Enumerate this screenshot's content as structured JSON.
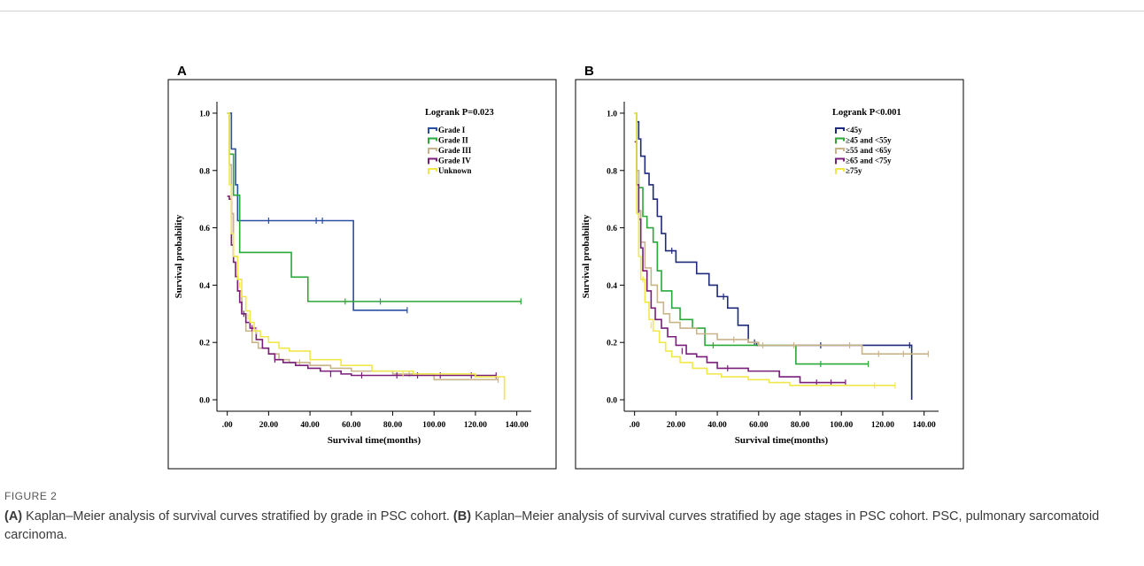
{
  "figure": {
    "label": "FIGURE 2",
    "caption_a_tag": "(A)",
    "caption_a_text": " Kaplan–Meier analysis of survival curves stratified by grade in PSC cohort. ",
    "caption_b_tag": "(B)",
    "caption_b_text": " Kaplan–Meier analysis of survival curves stratified by age stages in PSC cohort. PSC, pulmonary sarcomatoid carcinoma."
  },
  "chart_data": [
    {
      "panel": "A",
      "type": "line",
      "step": true,
      "xlabel": "Survival time(months)",
      "ylabel": "Survival probability",
      "annotation": "Logrank P=0.023",
      "xlim": [
        -5,
        147
      ],
      "ylim": [
        -0.04,
        1.04
      ],
      "xticks": [
        0,
        20,
        40,
        60,
        80,
        100,
        120,
        140
      ],
      "xtick_labels": [
        ".00",
        "20.00",
        "40.00",
        "60.00",
        "80.00",
        "100.00",
        "120.00",
        "140.00"
      ],
      "yticks": [
        0,
        0.2,
        0.4,
        0.6,
        0.8,
        1.0
      ],
      "ytick_labels": [
        "0.0",
        "0.2",
        "0.4",
        "0.6",
        "0.8",
        "1.0"
      ],
      "legend_position": "top-right",
      "series": [
        {
          "name": "Grade I",
          "color": "#2a4fa3",
          "points": [
            [
              0,
              1.0
            ],
            [
              2,
              0.875
            ],
            [
              4,
              0.75
            ],
            [
              5,
              0.625
            ],
            [
              61,
              0.3125
            ],
            [
              87,
              0.3125
            ]
          ],
          "censor": [
            [
              20,
              0.625
            ],
            [
              43,
              0.625
            ],
            [
              46,
              0.625
            ],
            [
              87,
              0.3125
            ]
          ]
        },
        {
          "name": "Grade II",
          "color": "#2aa83a",
          "points": [
            [
              0,
              1.0
            ],
            [
              1,
              0.857
            ],
            [
              3,
              0.714
            ],
            [
              6,
              0.514
            ],
            [
              31,
              0.428
            ],
            [
              39,
              0.343
            ],
            [
              142,
              0.343
            ]
          ],
          "censor": [
            [
              57,
              0.343
            ],
            [
              74,
              0.343
            ],
            [
              142,
              0.343
            ]
          ]
        },
        {
          "name": "Grade III",
          "color": "#c9b48a",
          "points": [
            [
              0,
              1.0
            ],
            [
              1,
              0.82
            ],
            [
              2,
              0.65
            ],
            [
              3,
              0.5
            ],
            [
              5,
              0.38
            ],
            [
              7,
              0.3
            ],
            [
              9,
              0.24
            ],
            [
              12,
              0.2
            ],
            [
              15,
              0.18
            ],
            [
              20,
              0.16
            ],
            [
              25,
              0.14
            ],
            [
              30,
              0.13
            ],
            [
              40,
              0.12
            ],
            [
              50,
              0.11
            ],
            [
              60,
              0.1
            ],
            [
              80,
              0.09
            ],
            [
              100,
              0.07
            ],
            [
              131,
              0.07
            ]
          ],
          "censor": [
            [
              35,
              0.13
            ],
            [
              88,
              0.09
            ],
            [
              131,
              0.07
            ]
          ]
        },
        {
          "name": "Grade IV",
          "color": "#7a1e7a",
          "points": [
            [
              0,
              0.71
            ],
            [
              1,
              0.7
            ],
            [
              2,
              0.54
            ],
            [
              3,
              0.48
            ],
            [
              4,
              0.43
            ],
            [
              5,
              0.38
            ],
            [
              6,
              0.34
            ],
            [
              7,
              0.3
            ],
            [
              9,
              0.27
            ],
            [
              11,
              0.25
            ],
            [
              14,
              0.21
            ],
            [
              17,
              0.18
            ],
            [
              20,
              0.16
            ],
            [
              23,
              0.14
            ],
            [
              27,
              0.13
            ],
            [
              33,
              0.12
            ],
            [
              39,
              0.11
            ],
            [
              45,
              0.1
            ],
            [
              55,
              0.09
            ],
            [
              60,
              0.085
            ],
            [
              80,
              0.085
            ],
            [
              100,
              0.085
            ],
            [
              130,
              0.085
            ]
          ],
          "censor": [
            [
              8,
              0.3
            ],
            [
              12,
              0.25
            ],
            [
              23,
              0.14
            ],
            [
              50,
              0.09
            ],
            [
              65,
              0.085
            ],
            [
              82,
              0.085
            ],
            [
              92,
              0.085
            ],
            [
              103,
              0.085
            ],
            [
              118,
              0.085
            ],
            [
              130,
              0.085
            ]
          ]
        },
        {
          "name": "Unknown",
          "color": "#f0e84a",
          "points": [
            [
              0,
              1.0
            ],
            [
              1,
              0.75
            ],
            [
              2,
              0.58
            ],
            [
              3,
              0.5
            ],
            [
              5,
              0.42
            ],
            [
              7,
              0.36
            ],
            [
              9,
              0.31
            ],
            [
              11,
              0.27
            ],
            [
              13,
              0.24
            ],
            [
              16,
              0.22
            ],
            [
              20,
              0.2
            ],
            [
              25,
              0.18
            ],
            [
              30,
              0.17
            ],
            [
              40,
              0.14
            ],
            [
              55,
              0.12
            ],
            [
              70,
              0.1
            ],
            [
              90,
              0.09
            ],
            [
              120,
              0.08
            ],
            [
              134,
              0.08
            ],
            [
              134,
              0.0
            ]
          ],
          "censor": [
            [
              6,
              0.4
            ],
            [
              10,
              0.29
            ],
            [
              14,
              0.24
            ],
            [
              85,
              0.09
            ]
          ]
        }
      ]
    },
    {
      "panel": "B",
      "type": "line",
      "step": true,
      "xlabel": "Survival time(months)",
      "ylabel": "Survival probability",
      "annotation": "Logrank P<0.001",
      "xlim": [
        -5,
        147
      ],
      "ylim": [
        -0.04,
        1.04
      ],
      "xticks": [
        0,
        20,
        40,
        60,
        80,
        100,
        120,
        140
      ],
      "xtick_labels": [
        ".00",
        "20.00",
        "40.00",
        "60.00",
        "80.00",
        "100.00",
        "120.00",
        "140.00"
      ],
      "yticks": [
        0,
        0.2,
        0.4,
        0.6,
        0.8,
        1.0
      ],
      "ytick_labels": [
        "0.0",
        "0.2",
        "0.4",
        "0.6",
        "0.8",
        "1.0"
      ],
      "legend_position": "top-right",
      "series": [
        {
          "name": "<45y",
          "color": "#1f2a7a",
          "points": [
            [
              0,
              1.0
            ],
            [
              1,
              0.97
            ],
            [
              2,
              0.91
            ],
            [
              3,
              0.85
            ],
            [
              5,
              0.79
            ],
            [
              7,
              0.75
            ],
            [
              9,
              0.7
            ],
            [
              11,
              0.64
            ],
            [
              13,
              0.58
            ],
            [
              15,
              0.52
            ],
            [
              20,
              0.48
            ],
            [
              30,
              0.44
            ],
            [
              36,
              0.4
            ],
            [
              40,
              0.36
            ],
            [
              45,
              0.32
            ],
            [
              50,
              0.26
            ],
            [
              55,
              0.2
            ],
            [
              59,
              0.19
            ],
            [
              134,
              0.19
            ],
            [
              134,
              0.0
            ]
          ],
          "censor": [
            [
              18,
              0.52
            ],
            [
              43,
              0.36
            ],
            [
              58,
              0.2
            ],
            [
              90,
              0.19
            ],
            [
              133,
              0.19
            ]
          ]
        },
        {
          "name": "≥45 and <55y",
          "color": "#2aa83a",
          "points": [
            [
              0,
              1.0
            ],
            [
              1,
              0.8
            ],
            [
              2,
              0.74
            ],
            [
              4,
              0.64
            ],
            [
              6,
              0.6
            ],
            [
              9,
              0.55
            ],
            [
              11,
              0.45
            ],
            [
              13,
              0.38
            ],
            [
              18,
              0.32
            ],
            [
              22,
              0.28
            ],
            [
              28,
              0.25
            ],
            [
              34,
              0.19
            ],
            [
              78,
              0.19
            ],
            [
              78,
              0.125
            ],
            [
              113,
              0.125
            ]
          ],
          "censor": [
            [
              38,
              0.19
            ],
            [
              90,
              0.125
            ],
            [
              113,
              0.125
            ]
          ]
        },
        {
          "name": "≥55 and <65y",
          "color": "#c9b48a",
          "points": [
            [
              0,
              1.0
            ],
            [
              1,
              0.8
            ],
            [
              2,
              0.66
            ],
            [
              3,
              0.55
            ],
            [
              5,
              0.46
            ],
            [
              8,
              0.4
            ],
            [
              11,
              0.34
            ],
            [
              14,
              0.3
            ],
            [
              17,
              0.27
            ],
            [
              22,
              0.25
            ],
            [
              30,
              0.23
            ],
            [
              40,
              0.21
            ],
            [
              55,
              0.2
            ],
            [
              60,
              0.19
            ],
            [
              110,
              0.19
            ],
            [
              110,
              0.16
            ],
            [
              142,
              0.16
            ]
          ],
          "censor": [
            [
              48,
              0.21
            ],
            [
              62,
              0.19
            ],
            [
              77,
              0.19
            ],
            [
              104,
              0.19
            ],
            [
              118,
              0.16
            ],
            [
              130,
              0.16
            ],
            [
              142,
              0.16
            ]
          ]
        },
        {
          "name": "≥65 and <75y",
          "color": "#7a1e7a",
          "points": [
            [
              0,
              0.9
            ],
            [
              1,
              0.75
            ],
            [
              2,
              0.63
            ],
            [
              3,
              0.53
            ],
            [
              4,
              0.45
            ],
            [
              6,
              0.38
            ],
            [
              8,
              0.32
            ],
            [
              10,
              0.28
            ],
            [
              13,
              0.25
            ],
            [
              16,
              0.22
            ],
            [
              20,
              0.19
            ],
            [
              25,
              0.16
            ],
            [
              30,
              0.15
            ],
            [
              35,
              0.13
            ],
            [
              40,
              0.11
            ],
            [
              55,
              0.1
            ],
            [
              70,
              0.08
            ],
            [
              80,
              0.06
            ],
            [
              102,
              0.06
            ]
          ],
          "censor": [
            [
              23,
              0.17
            ],
            [
              45,
              0.11
            ],
            [
              88,
              0.06
            ],
            [
              95,
              0.06
            ],
            [
              102,
              0.06
            ]
          ]
        },
        {
          "name": "≥75y",
          "color": "#f0e84a",
          "points": [
            [
              0,
              1.0
            ],
            [
              1,
              0.65
            ],
            [
              2,
              0.5
            ],
            [
              3,
              0.42
            ],
            [
              5,
              0.34
            ],
            [
              7,
              0.28
            ],
            [
              9,
              0.24
            ],
            [
              12,
              0.2
            ],
            [
              15,
              0.17
            ],
            [
              18,
              0.15
            ],
            [
              22,
              0.13
            ],
            [
              28,
              0.11
            ],
            [
              35,
              0.09
            ],
            [
              42,
              0.08
            ],
            [
              55,
              0.07
            ],
            [
              65,
              0.06
            ],
            [
              75,
              0.05
            ],
            [
              126,
              0.05
            ]
          ],
          "censor": [
            [
              4,
              0.42
            ],
            [
              8,
              0.26
            ],
            [
              116,
              0.05
            ],
            [
              126,
              0.05
            ]
          ]
        }
      ]
    }
  ]
}
